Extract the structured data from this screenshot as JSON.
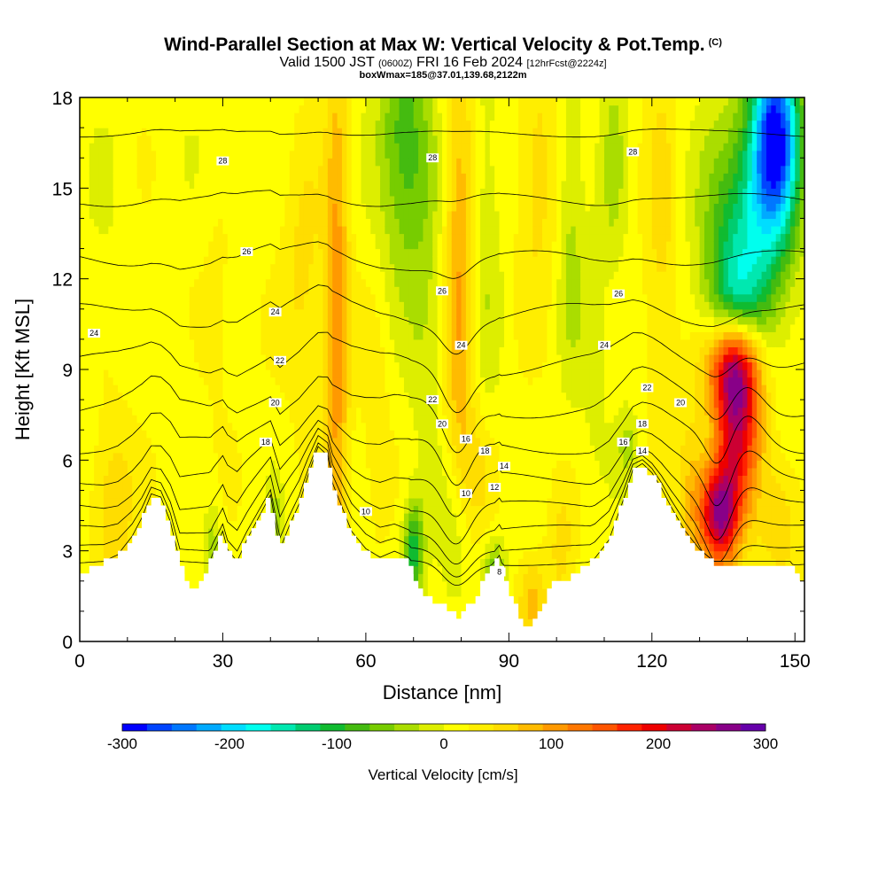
{
  "title": {
    "main": "Wind-Parallel Section at Max W: Vertical Velocity & Pot.Temp.",
    "copyright": "(C)",
    "valid_prefix": "Valid 1500 JST",
    "valid_utc": "(0600Z)",
    "valid_date": "FRI 16 Feb 2024",
    "forecast": "[12hrFcst@2224z]",
    "box": "boxWmax=185@37.01,139.68,2122m"
  },
  "chart_data": {
    "type": "heatmap",
    "xlabel": "Distance [nm]",
    "ylabel": "Height [Kft MSL]",
    "xlim": [
      0,
      152
    ],
    "ylim": [
      0,
      18
    ],
    "x_ticks": [
      "0",
      "30",
      "60",
      "90",
      "120",
      "150"
    ],
    "y_ticks": [
      "0",
      "3",
      "6",
      "9",
      "12",
      "15",
      "18"
    ],
    "colorbar": {
      "label": "Vertical Velocity [cm/s]",
      "range": [
        -300,
        300
      ],
      "ticks": [
        "-300",
        "-200",
        "-100",
        "0",
        "100",
        "200",
        "300"
      ],
      "colors": [
        "#0000ff",
        "#0044ff",
        "#0077ff",
        "#00aaff",
        "#00ddff",
        "#00ffee",
        "#00e8b0",
        "#00cc70",
        "#10bb30",
        "#44bb10",
        "#77cc00",
        "#aadd00",
        "#ddee00",
        "#ffff00",
        "#ffee00",
        "#ffdd00",
        "#ffbb00",
        "#ff9900",
        "#ff7700",
        "#ff5500",
        "#ff2200",
        "#ee0000",
        "#cc0033",
        "#aa0066",
        "#880088",
        "#6600aa"
      ]
    },
    "terrain": [
      {
        "x": 0,
        "y": 2.2
      },
      {
        "x": 5,
        "y": 2.6
      },
      {
        "x": 8,
        "y": 2.8
      },
      {
        "x": 11,
        "y": 3.4
      },
      {
        "x": 13,
        "y": 4.0
      },
      {
        "x": 15,
        "y": 4.8
      },
      {
        "x": 17,
        "y": 4.7
      },
      {
        "x": 19,
        "y": 3.9
      },
      {
        "x": 21,
        "y": 2.6
      },
      {
        "x": 23,
        "y": 1.7
      },
      {
        "x": 26,
        "y": 2.0
      },
      {
        "x": 28,
        "y": 2.9
      },
      {
        "x": 30,
        "y": 3.6
      },
      {
        "x": 31,
        "y": 3.0
      },
      {
        "x": 33,
        "y": 2.6
      },
      {
        "x": 35,
        "y": 3.3
      },
      {
        "x": 38,
        "y": 4.2
      },
      {
        "x": 40,
        "y": 4.8
      },
      {
        "x": 41,
        "y": 3.9
      },
      {
        "x": 42,
        "y": 3.0
      },
      {
        "x": 44,
        "y": 3.8
      },
      {
        "x": 46,
        "y": 4.5
      },
      {
        "x": 48,
        "y": 5.5
      },
      {
        "x": 50,
        "y": 6.4
      },
      {
        "x": 52,
        "y": 6.1
      },
      {
        "x": 53,
        "y": 5.2
      },
      {
        "x": 55,
        "y": 4.4
      },
      {
        "x": 57,
        "y": 3.6
      },
      {
        "x": 60,
        "y": 3.0
      },
      {
        "x": 63,
        "y": 2.7
      },
      {
        "x": 66,
        "y": 2.9
      },
      {
        "x": 69,
        "y": 2.7
      },
      {
        "x": 71,
        "y": 1.8
      },
      {
        "x": 74,
        "y": 1.3
      },
      {
        "x": 77,
        "y": 1.1
      },
      {
        "x": 79,
        "y": 0.8
      },
      {
        "x": 82,
        "y": 1.2
      },
      {
        "x": 84,
        "y": 1.7
      },
      {
        "x": 86,
        "y": 2.4
      },
      {
        "x": 88,
        "y": 2.8
      },
      {
        "x": 90,
        "y": 1.8
      },
      {
        "x": 92,
        "y": 0.9
      },
      {
        "x": 94,
        "y": 0.4
      },
      {
        "x": 96,
        "y": 0.7
      },
      {
        "x": 98,
        "y": 1.5
      },
      {
        "x": 100,
        "y": 2.0
      },
      {
        "x": 103,
        "y": 2.1
      },
      {
        "x": 105,
        "y": 2.4
      },
      {
        "x": 108,
        "y": 2.7
      },
      {
        "x": 111,
        "y": 3.3
      },
      {
        "x": 114,
        "y": 4.6
      },
      {
        "x": 116,
        "y": 5.6
      },
      {
        "x": 118,
        "y": 5.8
      },
      {
        "x": 120,
        "y": 5.5
      },
      {
        "x": 122,
        "y": 5.0
      },
      {
        "x": 124,
        "y": 4.4
      },
      {
        "x": 127,
        "y": 3.6
      },
      {
        "x": 130,
        "y": 3.0
      },
      {
        "x": 133,
        "y": 2.6
      },
      {
        "x": 138,
        "y": 2.6
      },
      {
        "x": 142,
        "y": 2.6
      },
      {
        "x": 146,
        "y": 2.6
      },
      {
        "x": 149,
        "y": 2.6
      },
      {
        "x": 151,
        "y": 2.2
      },
      {
        "x": 152,
        "y": 2.0
      }
    ],
    "velocity_features": [
      {
        "x": 134,
        "y": 4.2,
        "sx": 3,
        "sy": 1.2,
        "w": 230
      },
      {
        "x": 138,
        "y": 7.5,
        "sx": 3.5,
        "sy": 2.0,
        "w": 200
      },
      {
        "x": 137,
        "y": 9.3,
        "sx": 4,
        "sy": 1.2,
        "w": 150
      },
      {
        "x": 146,
        "y": 16.8,
        "sx": 3.5,
        "sy": 2.2,
        "w": -280
      },
      {
        "x": 140,
        "y": 13.5,
        "sx": 6,
        "sy": 2.8,
        "w": -150
      },
      {
        "x": 137,
        "y": 11.2,
        "sx": 4,
        "sy": 1.2,
        "w": -90
      },
      {
        "x": 68,
        "y": 16.5,
        "sx": 4,
        "sy": 3.0,
        "w": -100
      },
      {
        "x": 84,
        "y": 13.5,
        "sx": 3,
        "sy": 5.0,
        "w": -45
      },
      {
        "x": 80,
        "y": 12.0,
        "sx": 2.5,
        "sy": 6.0,
        "w": 95
      },
      {
        "x": 54,
        "y": 10.5,
        "sx": 1.8,
        "sy": 7.0,
        "w": 90
      },
      {
        "x": 47,
        "y": 12.0,
        "sx": 3,
        "sy": 3.0,
        "w": 40
      },
      {
        "x": 73,
        "y": 10.5,
        "sx": 3,
        "sy": 4.0,
        "w": -35
      },
      {
        "x": 96,
        "y": 15.5,
        "sx": 3,
        "sy": 3.0,
        "w": 45
      },
      {
        "x": 103,
        "y": 14.0,
        "sx": 2,
        "sy": 4.0,
        "w": -45
      },
      {
        "x": 112,
        "y": 16.0,
        "sx": 2,
        "sy": 3.0,
        "w": -40
      },
      {
        "x": 122,
        "y": 13.0,
        "sx": 2.5,
        "sy": 5.0,
        "w": 40
      },
      {
        "x": 108,
        "y": 10.0,
        "sx": 2,
        "sy": 3.0,
        "w": -30
      },
      {
        "x": 70,
        "y": 3.0,
        "sx": 1.5,
        "sy": 1.2,
        "w": -120
      },
      {
        "x": 79,
        "y": 3.0,
        "sx": 2.5,
        "sy": 2.0,
        "w": -50
      },
      {
        "x": 87,
        "y": 1.8,
        "sx": 1.5,
        "sy": 1.0,
        "w": -110
      },
      {
        "x": 95,
        "y": 1.3,
        "sx": 2,
        "sy": 1.0,
        "w": 55
      },
      {
        "x": 101,
        "y": 3.0,
        "sx": 2,
        "sy": 1.5,
        "w": 40
      },
      {
        "x": 84,
        "y": 5.5,
        "sx": 2.5,
        "sy": 1.5,
        "w": 30
      },
      {
        "x": 7,
        "y": 4.5,
        "sx": 3,
        "sy": 2.0,
        "w": 55
      },
      {
        "x": 28,
        "y": 3.2,
        "sx": 1.2,
        "sy": 1.0,
        "w": -50
      },
      {
        "x": 41,
        "y": 3.8,
        "sx": 1.2,
        "sy": 1.0,
        "w": -45
      },
      {
        "x": 20,
        "y": 9.5,
        "sx": 2,
        "sy": 1.5,
        "w": -20
      },
      {
        "x": 29,
        "y": 11.0,
        "sx": 2.5,
        "sy": 2.5,
        "w": 20
      },
      {
        "x": 62,
        "y": 7.5,
        "sx": 2,
        "sy": 3.0,
        "w": 25
      },
      {
        "x": 115,
        "y": 6.5,
        "sx": 2,
        "sy": 1.0,
        "w": -40
      },
      {
        "x": 128,
        "y": 5.0,
        "sx": 2,
        "sy": 2.0,
        "w": 50
      },
      {
        "x": 147,
        "y": 4.0,
        "sx": 3,
        "sy": 1.5,
        "w": 50
      },
      {
        "x": 30,
        "y": 16.5,
        "sx": 5,
        "sy": 2.0,
        "w": -15
      },
      {
        "x": 5,
        "y": 14.0,
        "sx": 4,
        "sy": 3.0,
        "w": -12
      }
    ],
    "theta_levels": [
      8,
      10,
      12,
      14,
      16,
      18,
      20,
      22,
      24,
      26,
      28
    ],
    "contour_labels": [
      {
        "text": "28",
        "x": 30,
        "y": 15.9
      },
      {
        "text": "28",
        "x": 74,
        "y": 16.0
      },
      {
        "text": "28",
        "x": 116,
        "y": 16.2
      },
      {
        "text": "26",
        "x": 35,
        "y": 12.9
      },
      {
        "text": "26",
        "x": 76,
        "y": 11.6
      },
      {
        "text": "26",
        "x": 113,
        "y": 11.5
      },
      {
        "text": "24",
        "x": 3,
        "y": 10.2
      },
      {
        "text": "24",
        "x": 41,
        "y": 10.9
      },
      {
        "text": "24",
        "x": 80,
        "y": 9.8
      },
      {
        "text": "24",
        "x": 110,
        "y": 9.8
      },
      {
        "text": "22",
        "x": 42,
        "y": 9.3
      },
      {
        "text": "22",
        "x": 74,
        "y": 8.0
      },
      {
        "text": "22",
        "x": 119,
        "y": 8.4
      },
      {
        "text": "20",
        "x": 41,
        "y": 7.9
      },
      {
        "text": "20",
        "x": 76,
        "y": 7.2
      },
      {
        "text": "20",
        "x": 126,
        "y": 7.9
      },
      {
        "text": "18",
        "x": 39,
        "y": 6.6
      },
      {
        "text": "18",
        "x": 85,
        "y": 6.3
      },
      {
        "text": "18",
        "x": 118,
        "y": 7.2
      },
      {
        "text": "16",
        "x": 81,
        "y": 6.7
      },
      {
        "text": "16",
        "x": 114,
        "y": 6.6
      },
      {
        "text": "14",
        "x": 89,
        "y": 5.8
      },
      {
        "text": "14",
        "x": 118,
        "y": 6.3
      },
      {
        "text": "12",
        "x": 87,
        "y": 5.1
      },
      {
        "text": "10",
        "x": 60,
        "y": 4.3
      },
      {
        "text": "10",
        "x": 81,
        "y": 4.9
      },
      {
        "text": "8",
        "x": 88,
        "y": 2.3
      }
    ]
  }
}
